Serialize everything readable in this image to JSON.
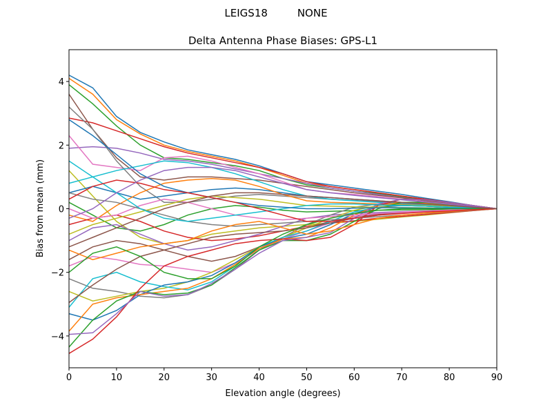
{
  "suptitle": "LEIGS18         NONE",
  "chart_data": {
    "type": "line",
    "title": "Delta Antenna Phase Biases: GPS-L1",
    "xlabel": "Elevation angle (degrees)",
    "ylabel": "Bias from mean (mm)",
    "xlim": [
      0,
      90
    ],
    "ylim": [
      -5,
      5
    ],
    "xticks": [
      0,
      10,
      20,
      30,
      40,
      50,
      60,
      70,
      80,
      90
    ],
    "yticks": [
      -4,
      -2,
      0,
      2,
      4
    ],
    "grid": false,
    "legend": "none",
    "colors": [
      "#1f77b4",
      "#ff7f0e",
      "#2ca02c",
      "#d62728",
      "#9467bd",
      "#8c564b",
      "#e377c2",
      "#7f7f7f",
      "#bcbd22",
      "#17becf"
    ],
    "x": [
      0,
      5,
      10,
      15,
      20,
      25,
      30,
      35,
      40,
      45,
      50,
      55,
      60,
      65,
      70,
      75,
      80,
      85,
      90
    ],
    "series": [
      {
        "values": [
          4.2,
          3.8,
          2.9,
          2.4,
          2.1,
          1.85,
          1.7,
          1.55,
          1.35,
          1.1,
          0.85,
          0.75,
          0.65,
          0.55,
          0.45,
          0.33,
          0.22,
          0.1,
          0
        ]
      },
      {
        "values": [
          4.1,
          3.6,
          2.8,
          2.35,
          2.0,
          1.8,
          1.65,
          1.5,
          1.3,
          1.05,
          0.8,
          0.7,
          0.6,
          0.5,
          0.4,
          0.3,
          0.2,
          0.1,
          0
        ]
      },
      {
        "values": [
          3.9,
          3.3,
          2.6,
          2.0,
          1.6,
          1.55,
          1.45,
          1.35,
          1.2,
          0.95,
          0.75,
          0.65,
          0.55,
          0.48,
          0.38,
          0.28,
          0.18,
          0.09,
          0
        ]
      },
      {
        "values": [
          2.85,
          2.7,
          2.45,
          2.2,
          1.95,
          1.75,
          1.6,
          1.45,
          1.3,
          1.1,
          0.85,
          0.7,
          0.6,
          0.5,
          0.4,
          0.3,
          0.2,
          0.1,
          0
        ]
      },
      {
        "values": [
          1.9,
          1.95,
          1.9,
          1.75,
          1.55,
          1.5,
          1.4,
          1.25,
          1.1,
          0.95,
          0.8,
          0.65,
          0.55,
          0.45,
          0.35,
          0.26,
          0.17,
          0.08,
          0
        ]
      },
      {
        "values": [
          3.6,
          2.5,
          1.6,
          1.0,
          0.9,
          1.0,
          1.0,
          0.95,
          0.9,
          0.8,
          0.7,
          0.6,
          0.5,
          0.42,
          0.34,
          0.25,
          0.16,
          0.08,
          0
        ]
      },
      {
        "values": [
          2.3,
          1.4,
          1.3,
          1.2,
          1.6,
          1.65,
          1.5,
          1.3,
          1.1,
          0.85,
          0.6,
          0.5,
          0.45,
          0.38,
          0.3,
          0.22,
          0.15,
          0.07,
          0
        ]
      },
      {
        "values": [
          3.2,
          2.5,
          1.5,
          0.7,
          0.2,
          0.2,
          0.3,
          0.4,
          0.45,
          0.4,
          0.35,
          0.3,
          0.26,
          0.22,
          0.18,
          0.13,
          0.09,
          0.04,
          0
        ]
      },
      {
        "values": [
          1.2,
          0.4,
          -0.4,
          -0.9,
          -1.1,
          -1.0,
          -0.8,
          -0.7,
          -0.6,
          -0.55,
          -0.5,
          -0.45,
          -0.4,
          -0.33,
          -0.26,
          -0.2,
          -0.13,
          -0.06,
          0
        ]
      },
      {
        "values": [
          0.8,
          1.0,
          1.2,
          1.35,
          1.5,
          1.45,
          1.3,
          1.1,
          0.85,
          0.6,
          0.4,
          0.3,
          0.25,
          0.2,
          0.16,
          0.12,
          0.08,
          0.04,
          0
        ]
      },
      {
        "values": [
          0.5,
          0.7,
          0.5,
          0.3,
          0.4,
          0.5,
          0.6,
          0.65,
          0.6,
          0.5,
          0.4,
          0.35,
          0.3,
          0.25,
          0.2,
          0.15,
          0.1,
          0.05,
          0
        ]
      },
      {
        "values": [
          -0.2,
          -0.4,
          0.1,
          0.5,
          0.8,
          0.9,
          0.95,
          0.9,
          0.7,
          0.45,
          0.25,
          0.2,
          0.18,
          0.15,
          0.12,
          0.09,
          0.06,
          0.03,
          0
        ]
      },
      {
        "values": [
          0.2,
          -0.2,
          -0.6,
          -0.7,
          -0.5,
          -0.2,
          0.0,
          0.1,
          0.05,
          -0.05,
          -0.1,
          -0.08,
          -0.06,
          -0.05,
          -0.04,
          -0.03,
          -0.02,
          -0.01,
          0
        ]
      },
      {
        "values": [
          -0.5,
          -0.3,
          -0.2,
          -0.4,
          -0.7,
          -0.9,
          -1.0,
          -0.95,
          -0.85,
          -0.7,
          -0.55,
          -0.45,
          -0.38,
          -0.3,
          -0.24,
          -0.18,
          -0.12,
          -0.06,
          0
        ]
      },
      {
        "values": [
          -1.0,
          -0.6,
          -0.5,
          -0.8,
          -1.1,
          -1.3,
          -1.2,
          -1.0,
          -0.8,
          -0.55,
          -0.3,
          -0.2,
          -0.15,
          -0.12,
          -0.09,
          -0.07,
          -0.05,
          -0.02,
          0
        ]
      },
      {
        "values": [
          -1.6,
          -1.2,
          -1.0,
          -1.1,
          -1.3,
          -1.5,
          -1.65,
          -1.5,
          -1.2,
          -0.9,
          -0.6,
          -0.4,
          -0.25,
          -0.18,
          -0.12,
          -0.08,
          -0.05,
          -0.02,
          0
        ]
      },
      {
        "values": [
          -1.8,
          -1.5,
          -1.6,
          -1.75,
          -1.8,
          -1.9,
          -2.0,
          -1.7,
          -1.3,
          -0.95,
          -0.7,
          -0.45,
          -0.25,
          -0.15,
          -0.1,
          -0.07,
          -0.04,
          -0.02,
          0
        ]
      },
      {
        "values": [
          -2.2,
          -2.5,
          -2.6,
          -2.75,
          -2.8,
          -2.7,
          -2.4,
          -1.9,
          -1.3,
          -0.9,
          -0.5,
          -0.2,
          0.05,
          0.15,
          0.15,
          0.1,
          0.07,
          0.03,
          0
        ]
      },
      {
        "values": [
          -2.6,
          -2.9,
          -2.75,
          -2.6,
          -2.5,
          -2.3,
          -2.0,
          -1.6,
          -1.2,
          -0.9,
          -0.6,
          -0.3,
          -0.05,
          0.1,
          0.12,
          0.1,
          0.07,
          0.03,
          0
        ]
      },
      {
        "values": [
          -3.1,
          -2.2,
          -2.0,
          -2.3,
          -2.45,
          -2.55,
          -2.3,
          -1.8,
          -1.2,
          -0.9,
          -0.7,
          -0.4,
          -0.1,
          0.05,
          0.1,
          0.08,
          0.05,
          0.03,
          0
        ]
      },
      {
        "values": [
          -3.3,
          -3.5,
          -3.2,
          -2.7,
          -2.4,
          -2.3,
          -2.1,
          -1.7,
          -1.2,
          -0.95,
          -0.8,
          -0.5,
          -0.15,
          0.05,
          0.1,
          0.08,
          0.05,
          0.02,
          0
        ]
      },
      {
        "values": [
          -3.85,
          -3.0,
          -2.8,
          -2.7,
          -2.6,
          -2.5,
          -2.2,
          -1.75,
          -1.25,
          -0.95,
          -0.9,
          -0.6,
          -0.2,
          0.1,
          0.2,
          0.18,
          0.12,
          0.06,
          0
        ]
      },
      {
        "values": [
          -4.35,
          -3.5,
          -2.9,
          -2.6,
          -2.7,
          -2.65,
          -2.4,
          -1.85,
          -1.3,
          -1.0,
          -1.0,
          -0.8,
          -0.4,
          0.0,
          0.2,
          0.2,
          0.13,
          0.06,
          0
        ]
      },
      {
        "values": [
          -4.55,
          -4.1,
          -3.4,
          -2.5,
          -1.8,
          -1.5,
          -1.3,
          -1.1,
          -1.0,
          -0.95,
          -1.0,
          -0.9,
          -0.5,
          0.1,
          0.3,
          0.3,
          0.2,
          0.1,
          0
        ]
      },
      {
        "values": [
          -3.95,
          -3.9,
          -3.3,
          -2.6,
          -2.75,
          -2.7,
          -2.35,
          -1.9,
          -1.4,
          -1.0,
          -0.9,
          -0.75,
          -0.3,
          0.15,
          0.3,
          0.28,
          0.2,
          0.1,
          0
        ]
      },
      {
        "values": [
          -2.95,
          -2.4,
          -1.9,
          -1.5,
          -1.3,
          -1.1,
          -0.9,
          -0.8,
          -0.75,
          -0.7,
          -0.6,
          -0.45,
          -0.3,
          -0.2,
          -0.13,
          -0.1,
          -0.07,
          -0.03,
          0
        ]
      },
      {
        "values": [
          0.0,
          -0.3,
          -0.2,
          0.1,
          0.3,
          0.2,
          0.0,
          -0.2,
          -0.3,
          -0.35,
          -0.3,
          -0.25,
          -0.2,
          -0.15,
          -0.11,
          -0.08,
          -0.05,
          -0.02,
          0
        ]
      },
      {
        "values": [
          0.5,
          0.3,
          0.2,
          0.0,
          -0.2,
          -0.4,
          -0.5,
          -0.55,
          -0.5,
          -0.45,
          -0.4,
          -0.35,
          -0.3,
          -0.25,
          -0.2,
          -0.15,
          -0.1,
          -0.05,
          0
        ]
      },
      {
        "values": [
          -0.8,
          -0.5,
          -0.3,
          -0.1,
          0.1,
          0.3,
          0.4,
          0.35,
          0.3,
          0.2,
          0.1,
          0.08,
          0.06,
          0.05,
          0.04,
          0.03,
          0.02,
          0.01,
          0
        ]
      },
      {
        "values": [
          1.5,
          1.0,
          0.5,
          0.0,
          -0.3,
          -0.4,
          -0.3,
          -0.2,
          -0.1,
          0.0,
          0.1,
          0.15,
          0.15,
          0.12,
          0.1,
          0.08,
          0.05,
          0.03,
          0
        ]
      },
      {
        "values": [
          2.8,
          2.3,
          1.7,
          1.1,
          0.7,
          0.5,
          0.35,
          0.2,
          0.1,
          0.05,
          0.0,
          0.0,
          0.02,
          0.03,
          0.03,
          0.02,
          0.02,
          0.01,
          0
        ]
      },
      {
        "values": [
          -1.3,
          -1.6,
          -1.4,
          -1.2,
          -1.1,
          -1.0,
          -0.7,
          -0.5,
          -0.4,
          -0.6,
          -0.8,
          -0.7,
          -0.5,
          -0.3,
          -0.2,
          -0.14,
          -0.09,
          -0.04,
          0
        ]
      },
      {
        "values": [
          -2.0,
          -1.4,
          -1.2,
          -1.5,
          -2.0,
          -2.2,
          -2.2,
          -1.8,
          -1.2,
          -0.8,
          -0.5,
          -0.3,
          -0.15,
          -0.05,
          0.0,
          0.0,
          0.0,
          0.0,
          0
        ]
      },
      {
        "values": [
          0.3,
          0.7,
          0.9,
          0.8,
          0.6,
          0.5,
          0.35,
          0.2,
          0.0,
          -0.2,
          -0.4,
          -0.4,
          -0.3,
          -0.2,
          -0.15,
          -0.1,
          -0.07,
          -0.03,
          0
        ]
      },
      {
        "values": [
          -0.3,
          0.0,
          0.5,
          0.9,
          1.2,
          1.3,
          1.3,
          1.2,
          1.0,
          0.8,
          0.6,
          0.5,
          0.42,
          0.35,
          0.28,
          0.21,
          0.14,
          0.07,
          0
        ]
      },
      {
        "values": [
          -1.2,
          -0.9,
          -0.6,
          -0.3,
          0.0,
          0.2,
          0.4,
          0.5,
          0.5,
          0.45,
          0.4,
          0.35,
          0.3,
          0.25,
          0.2,
          0.15,
          0.1,
          0.05,
          0
        ]
      }
    ]
  }
}
